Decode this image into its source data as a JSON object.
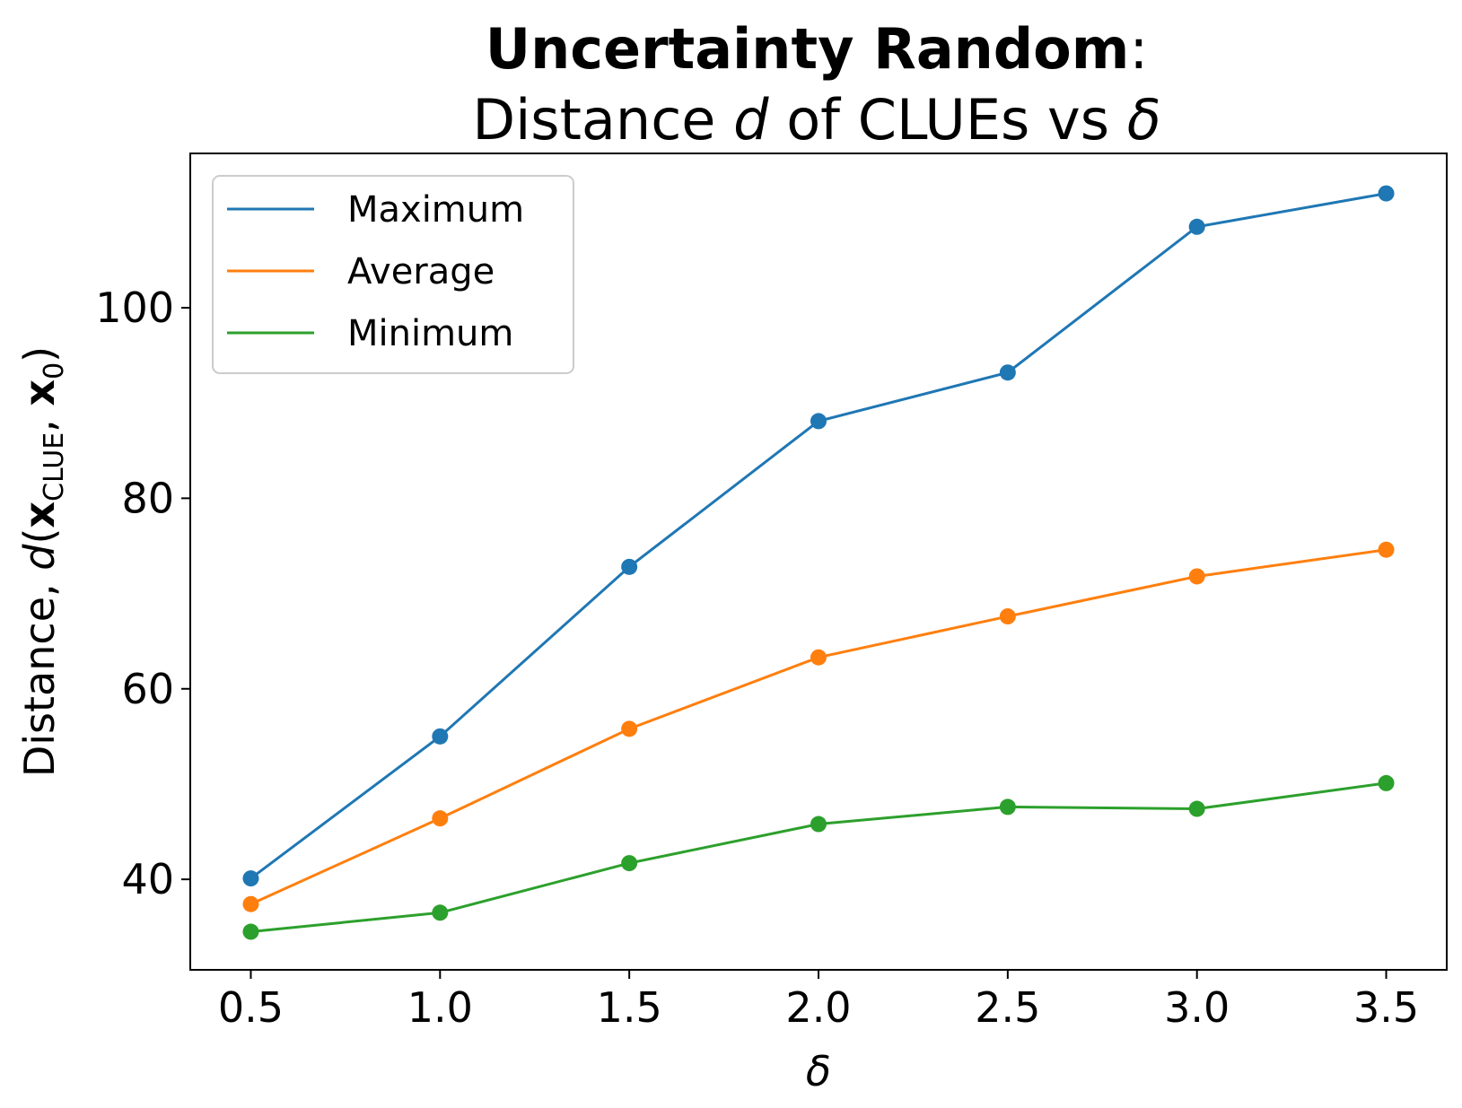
{
  "chart_data": {
    "type": "line",
    "title_bold": "Uncertainty Random",
    "title_colon": ":",
    "subtitle_pre": "Distance ",
    "subtitle_d": "d",
    "subtitle_mid": " of CLUEs vs ",
    "subtitle_delta": "δ",
    "xlabel": "δ",
    "ylabel": {
      "prefix": "Distance, ",
      "d": "d",
      "open": "(",
      "x1": "x",
      "x1_sub": "CLUE",
      "comma": ", ",
      "x2": "x",
      "x2_sub": "0",
      "close": ")"
    },
    "x": [
      0.5,
      1.0,
      1.5,
      2.0,
      2.5,
      3.0,
      3.5
    ],
    "xticks": [
      0.5,
      1.0,
      1.5,
      2.0,
      2.5,
      3.0,
      3.5
    ],
    "xtick_labels": [
      "0.5",
      "1.0",
      "1.5",
      "2.0",
      "2.5",
      "3.0",
      "3.5"
    ],
    "yticks": [
      40,
      60,
      80,
      100
    ],
    "ytick_labels": [
      "40",
      "60",
      "80",
      "100"
    ],
    "xlim": [
      0.34,
      3.66
    ],
    "ylim": [
      30.5,
      116.2
    ],
    "grid": false,
    "legend_position": "upper-left",
    "series": [
      {
        "name": "Maximum",
        "color": "#1f77b4",
        "values": [
          40.1,
          55.0,
          72.8,
          88.1,
          93.2,
          108.5,
          112.0
        ]
      },
      {
        "name": "Average",
        "color": "#ff7f0e",
        "values": [
          37.4,
          46.4,
          55.8,
          63.3,
          67.6,
          71.8,
          74.6
        ]
      },
      {
        "name": "Minimum",
        "color": "#2ca02c",
        "values": [
          34.5,
          36.5,
          41.7,
          45.8,
          47.6,
          47.4,
          50.1
        ]
      }
    ]
  }
}
